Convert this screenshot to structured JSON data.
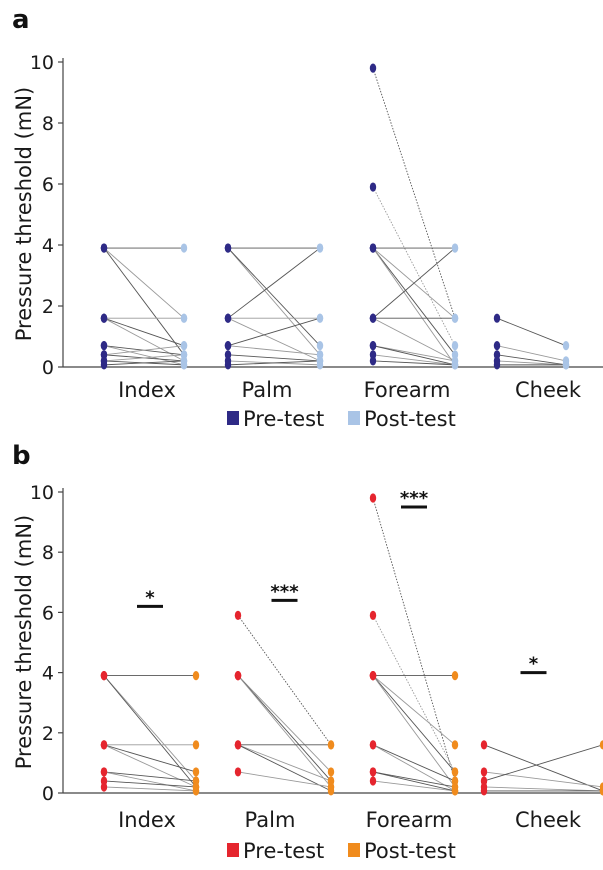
{
  "chart_data": [
    {
      "panel": "a",
      "type": "scatter",
      "ylabel": "Pressure threshold (mN)",
      "ylim": [
        0,
        10
      ],
      "yticks": [
        "0",
        "2",
        "4",
        "6",
        "8",
        "10"
      ],
      "categories": [
        "Index",
        "Palm",
        "Forearm",
        "Cheek"
      ],
      "legend": [
        {
          "label": "Pre-test",
          "color": "#2e2a86"
        },
        {
          "label": "Post-test",
          "color": "#a9c4e6"
        }
      ],
      "legend_position": "bottom",
      "significance": [],
      "pairs": {
        "Index": [
          [
            3.9,
            3.9
          ],
          [
            3.9,
            1.6
          ],
          [
            3.9,
            0.4
          ],
          [
            1.6,
            1.6
          ],
          [
            1.6,
            0.7
          ],
          [
            1.6,
            0.2
          ],
          [
            0.7,
            0.4
          ],
          [
            0.7,
            0.07
          ],
          [
            0.4,
            0.2
          ],
          [
            0.4,
            0.7
          ],
          [
            0.2,
            0.07
          ],
          [
            0.2,
            0.4
          ],
          [
            0.07,
            0.2
          ]
        ],
        "Palm": [
          [
            3.9,
            3.9
          ],
          [
            3.9,
            0.4
          ],
          [
            3.9,
            0.7
          ],
          [
            1.6,
            1.6
          ],
          [
            1.6,
            3.9
          ],
          [
            1.6,
            0.2
          ],
          [
            0.7,
            1.6
          ],
          [
            0.7,
            0.4
          ],
          [
            0.4,
            0.2
          ],
          [
            0.2,
            0.07
          ],
          [
            0.07,
            0.2
          ]
        ],
        "Forearm": [
          [
            9.8,
            1.6
          ],
          [
            5.9,
            0.7
          ],
          [
            3.9,
            3.9
          ],
          [
            3.9,
            1.6
          ],
          [
            3.9,
            0.4
          ],
          [
            3.9,
            0.07
          ],
          [
            1.6,
            1.6
          ],
          [
            1.6,
            0.2
          ],
          [
            1.6,
            3.9
          ],
          [
            0.7,
            0.2
          ],
          [
            0.7,
            0.07
          ],
          [
            0.4,
            0.07
          ],
          [
            0.2,
            0.07
          ]
        ],
        "Cheek": [
          [
            1.6,
            0.7
          ],
          [
            0.7,
            0.2
          ],
          [
            0.4,
            0.07
          ],
          [
            0.2,
            0.07
          ],
          [
            0.07,
            0.07
          ]
        ]
      }
    },
    {
      "panel": "b",
      "type": "scatter",
      "ylabel": "Pressure threshold (mN)",
      "ylim": [
        0,
        10
      ],
      "yticks": [
        "0",
        "2",
        "4",
        "6",
        "8",
        "10"
      ],
      "categories": [
        "Index",
        "Palm",
        "Forearm",
        "Cheek"
      ],
      "legend": [
        {
          "label": "Pre-test",
          "color": "#e5252e"
        },
        {
          "label": "Post-test",
          "color": "#f08b1d"
        }
      ],
      "legend_position": "bottom",
      "significance": [
        {
          "category": "Index",
          "label": "*",
          "y": 6.2
        },
        {
          "category": "Palm",
          "label": "***",
          "y": 6.4
        },
        {
          "category": "Forearm",
          "label": "***",
          "y": 9.5
        },
        {
          "category": "Cheek",
          "label": "*",
          "y": 4.0
        }
      ],
      "pairs": {
        "Index": [
          [
            3.9,
            3.9
          ],
          [
            3.9,
            0.4
          ],
          [
            3.9,
            0.2
          ],
          [
            1.6,
            1.6
          ],
          [
            1.6,
            0.7
          ],
          [
            1.6,
            0.2
          ],
          [
            0.7,
            0.4
          ],
          [
            0.7,
            0.07
          ],
          [
            0.4,
            0.2
          ],
          [
            0.2,
            0.07
          ]
        ],
        "Palm": [
          [
            5.9,
            1.6
          ],
          [
            3.9,
            0.7
          ],
          [
            3.9,
            0.4
          ],
          [
            3.9,
            0.2
          ],
          [
            1.6,
            1.6
          ],
          [
            1.6,
            0.4
          ],
          [
            1.6,
            0.07
          ],
          [
            0.7,
            0.2
          ]
        ],
        "Forearm": [
          [
            9.8,
            0.4
          ],
          [
            5.9,
            0.7
          ],
          [
            3.9,
            3.9
          ],
          [
            3.9,
            1.6
          ],
          [
            3.9,
            0.7
          ],
          [
            3.9,
            0.2
          ],
          [
            1.6,
            0.4
          ],
          [
            1.6,
            0.07
          ],
          [
            0.7,
            0.2
          ],
          [
            0.4,
            0.07
          ],
          [
            0.7,
            0.07
          ]
        ],
        "Cheek": [
          [
            1.6,
            0.07
          ],
          [
            0.7,
            0.2
          ],
          [
            0.4,
            1.6
          ],
          [
            0.2,
            0.07
          ],
          [
            0.07,
            0.07
          ]
        ]
      }
    }
  ]
}
